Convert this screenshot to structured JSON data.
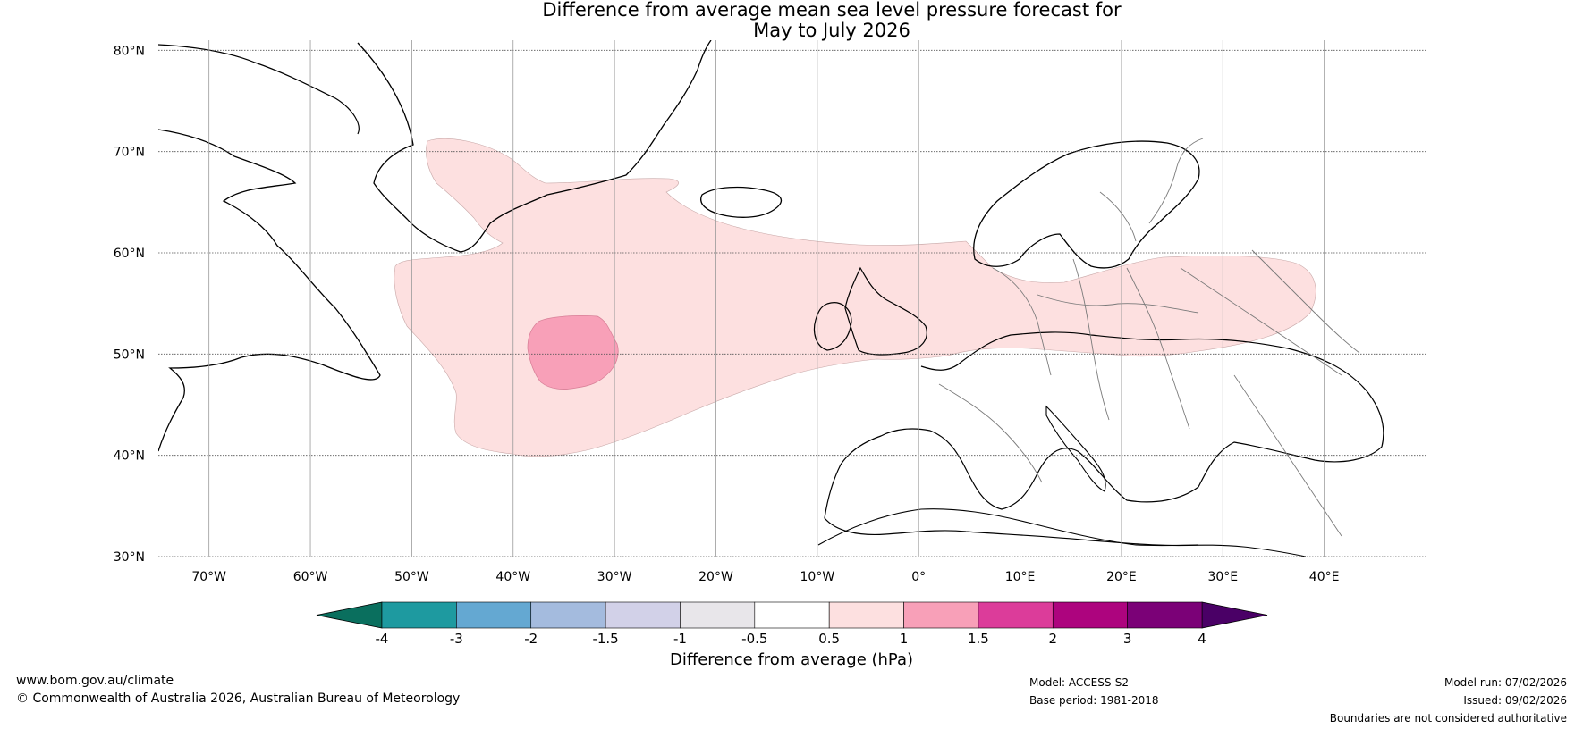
{
  "title": {
    "line1": "Difference from average mean sea level pressure forecast for",
    "line2": "May to July 2026"
  },
  "map": {
    "lat_labels": [
      "80°N",
      "70°N",
      "60°N",
      "50°N",
      "40°N",
      "30°N"
    ],
    "lon_labels": [
      "70°W",
      "60°W",
      "50°W",
      "40°W",
      "30°W",
      "20°W",
      "10°W",
      "0°",
      "10°E",
      "20°E",
      "30°E",
      "40°E"
    ],
    "lat_range": [
      30,
      81
    ],
    "lon_range": [
      -75,
      50
    ],
    "anomaly_regions": [
      {
        "name": "north-atlantic-0.5-to-1hPa",
        "range": "0.5 to 1",
        "color": "#fde0e0"
      },
      {
        "name": "mid-atlantic-1-to-1.5hPa",
        "range": "1 to 1.5",
        "color": "#f8a0b8"
      }
    ]
  },
  "colorbar": {
    "label": "Difference from average (hPa)",
    "ticks": [
      "-4",
      "-3",
      "-2",
      "-1.5",
      "-1",
      "-0.5",
      "0.5",
      "1",
      "1.5",
      "2",
      "3",
      "4"
    ],
    "colors": [
      "#1e9aa0",
      "#64a8d2",
      "#a4bbde",
      "#d2d1e8",
      "#e8e6ea",
      "#ffffff",
      "#fde0e0",
      "#f8a0b8",
      "#dc3c9a",
      "#ad047e",
      "#7b0177"
    ],
    "under_color": "#0a6f5e",
    "over_color": "#4a0066"
  },
  "footer": {
    "website": "www.bom.gov.au/climate",
    "copyright": "© Commonwealth of Australia 2026, Australian Bureau of Meteorology",
    "model": "Model: ACCESS-S2",
    "base_period": "Base period: 1981-2018",
    "model_run": "Model run: 07/02/2026",
    "issued": "Issued: 09/02/2026",
    "disclaimer": "Boundaries are not considered authoritative"
  }
}
